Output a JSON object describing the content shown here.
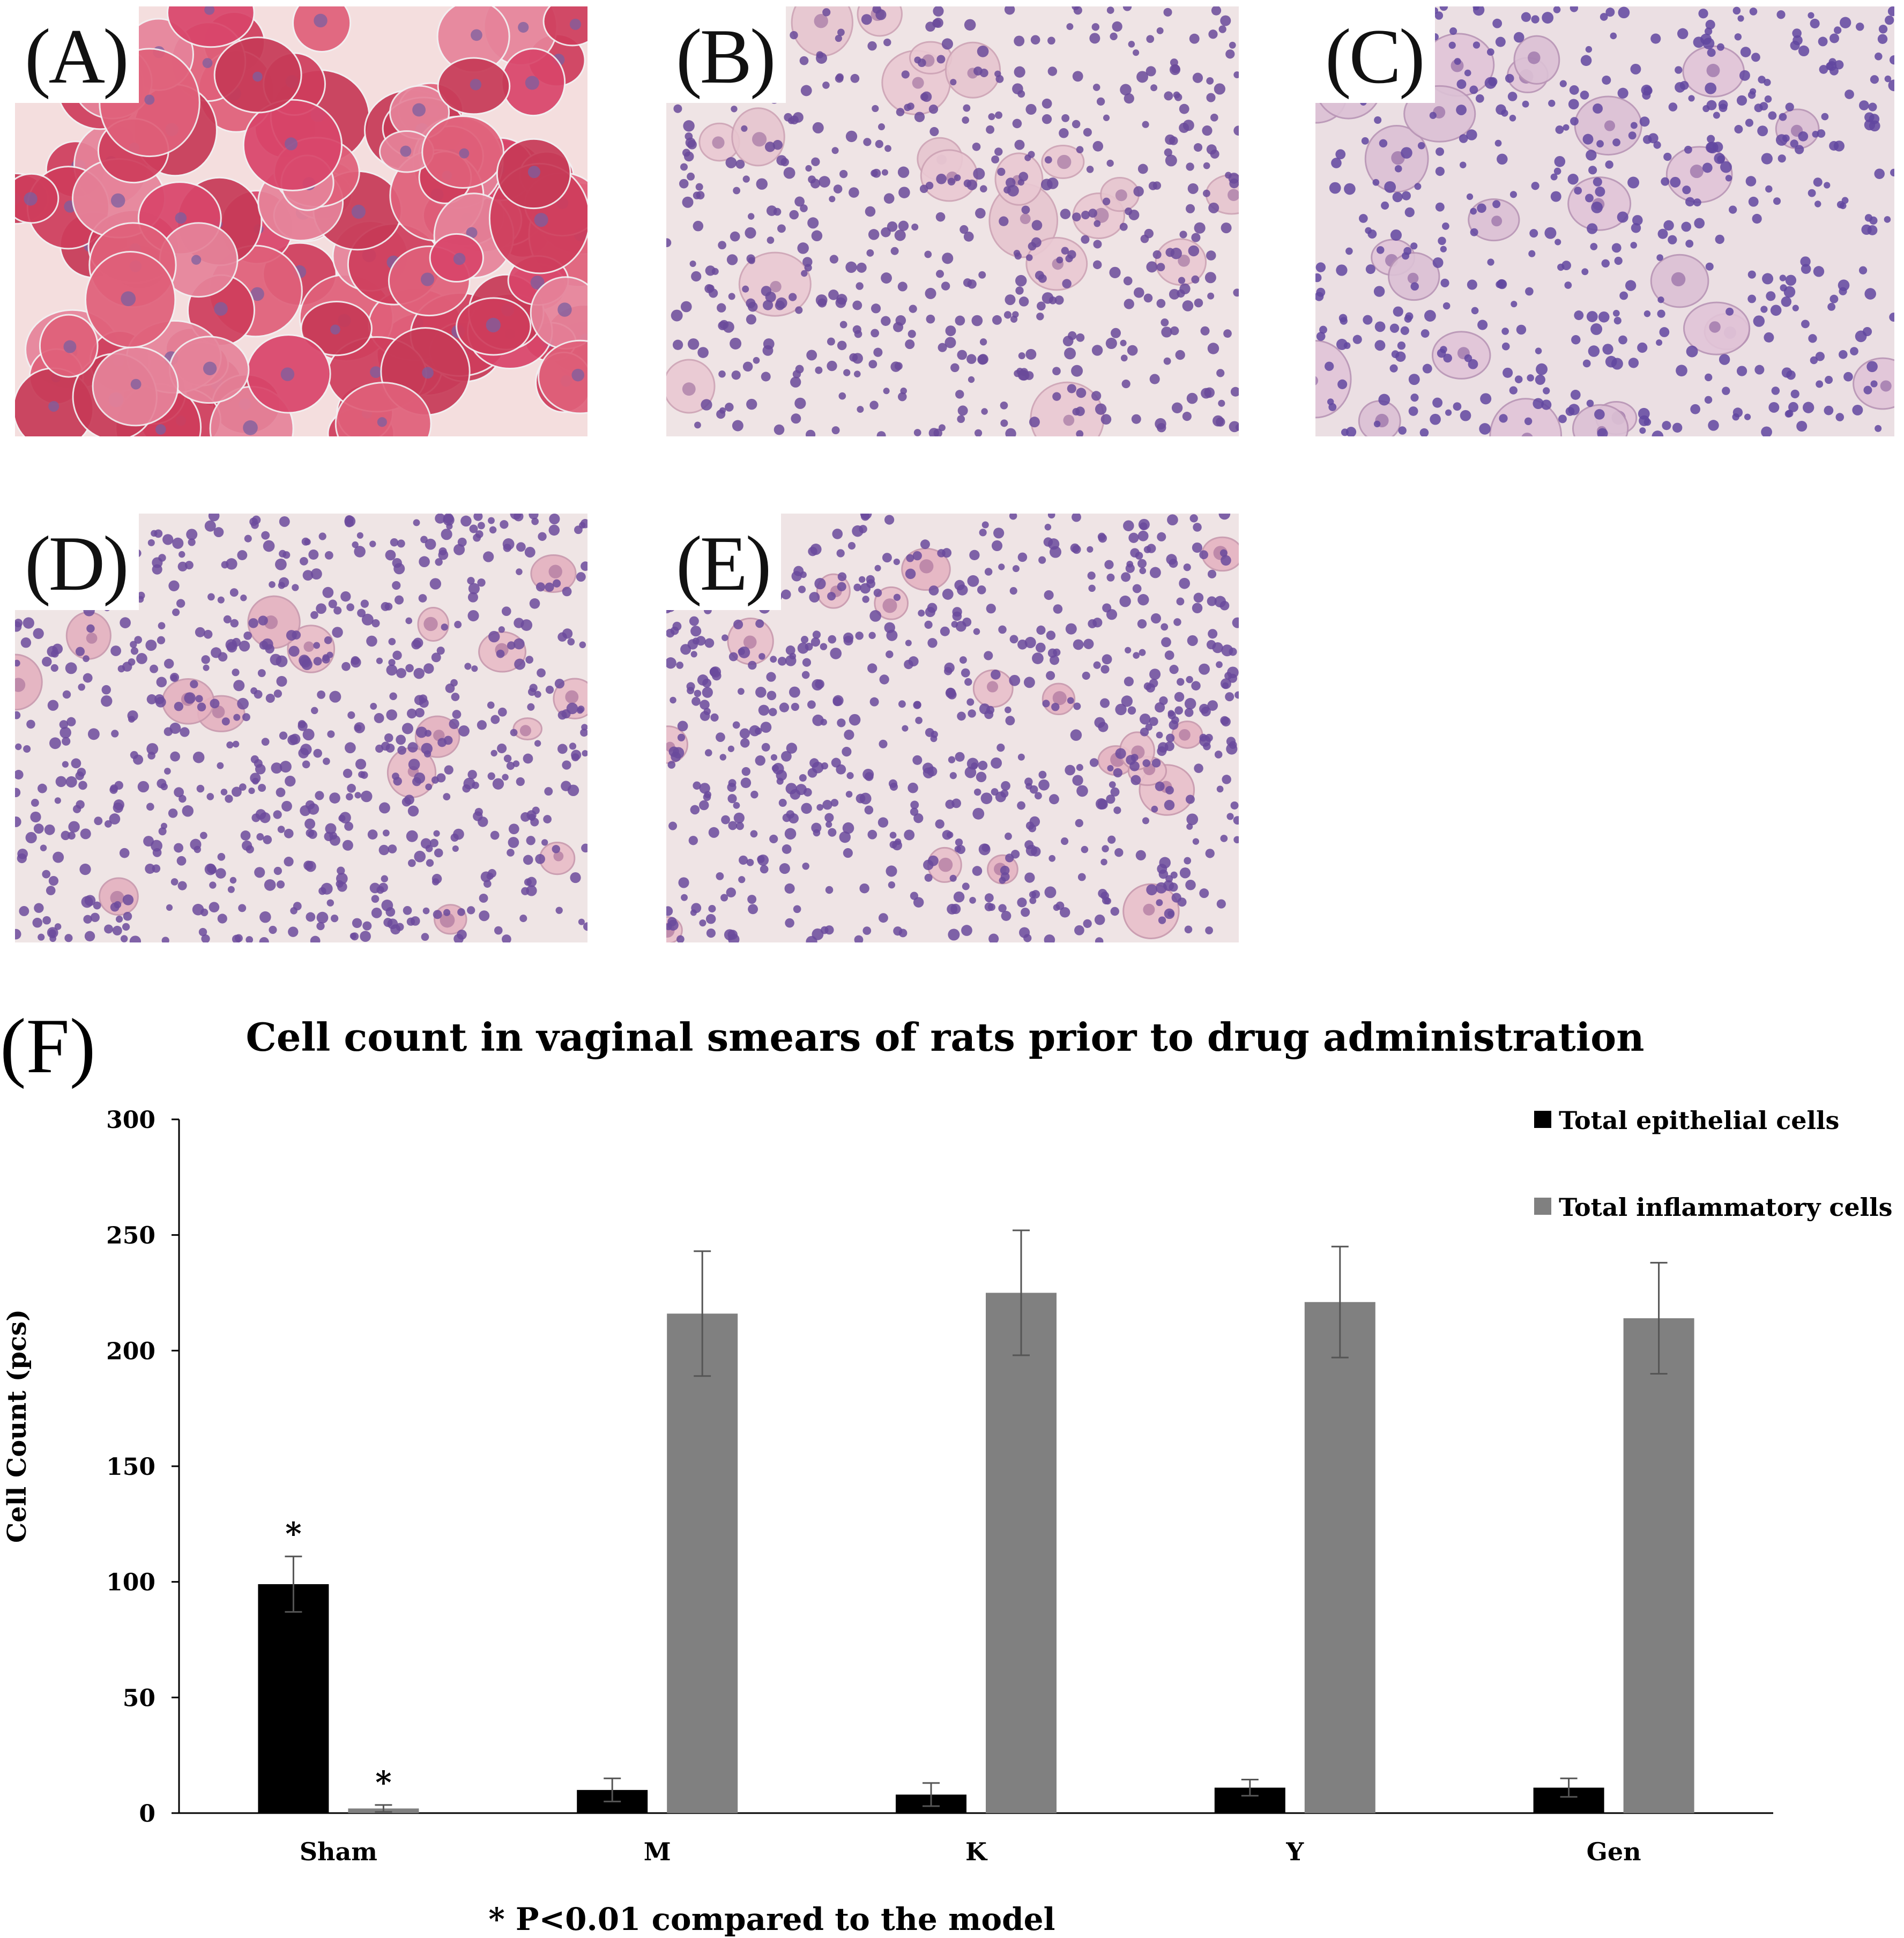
{
  "panels": [
    {
      "label": "(A)"
    },
    {
      "label": "(B)"
    },
    {
      "label": "(C)"
    },
    {
      "label": "(D)"
    },
    {
      "label": "(E)"
    }
  ],
  "chart_panel_label": "(F)",
  "chart_data": {
    "type": "bar",
    "title": "Cell count in vaginal smears of rats prior to drug administration",
    "xlabel": "",
    "ylabel": "Cell Count (pcs)",
    "ylim": [
      0,
      300
    ],
    "yticks": [
      0,
      50,
      100,
      150,
      200,
      250,
      300
    ],
    "categories": [
      "Sham",
      "M",
      "K",
      "Y",
      "Gen"
    ],
    "series": [
      {
        "name": "Total epithelial cells",
        "color": "#000000",
        "values": [
          99,
          10,
          8,
          11,
          11
        ],
        "errors": [
          12,
          5,
          5,
          3.5,
          4
        ]
      },
      {
        "name": "Total inflammatory cells",
        "color": "#808080",
        "values": [
          2,
          216,
          225,
          221,
          214
        ],
        "errors": [
          1.5,
          27,
          27,
          24,
          24
        ]
      }
    ],
    "significance_marks": [
      {
        "category": "Sham",
        "series": "Total epithelial cells",
        "mark": "*"
      },
      {
        "category": "Sham",
        "series": "Total inflammatory cells",
        "mark": "*"
      }
    ],
    "legend_position": "top-right",
    "footnote": "* P<0.01 compared to the model"
  }
}
